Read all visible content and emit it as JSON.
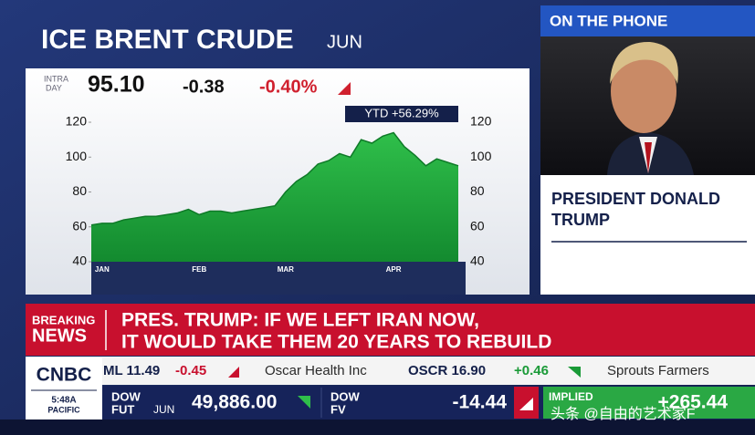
{
  "chart_data": {
    "type": "area",
    "title": "ICE BRENT CRUDE",
    "subtitle": "JUN",
    "categories": [
      null,
      "JAN",
      null,
      null,
      null,
      null,
      null,
      null,
      null,
      null,
      "FEB",
      null,
      null,
      null,
      null,
      null,
      null,
      null,
      "MAR",
      null,
      null,
      null,
      null,
      null,
      null,
      null,
      null,
      null,
      "APR",
      null,
      null,
      null,
      null,
      null,
      null
    ],
    "values": [
      61,
      62,
      62,
      64,
      65,
      66,
      66,
      67,
      68,
      70,
      67,
      69,
      69,
      68,
      69,
      70,
      71,
      72,
      80,
      86,
      90,
      96,
      98,
      102,
      100,
      110,
      108,
      112,
      114,
      106,
      101,
      95,
      99,
      97,
      95
    ],
    "color": "#1fa83c",
    "line_color": "#0f7a28",
    "ylim": [
      40,
      131
    ],
    "yticks": [
      40,
      60,
      80,
      100,
      120
    ],
    "annotation": "YTD +56.29%"
  },
  "quote": {
    "intraday": [
      "INTRA",
      "DAY"
    ],
    "price": "95.10",
    "change": "-0.38",
    "percent": "-0.40%"
  },
  "phone": {
    "label": "ON THE PHONE",
    "name": [
      "PRESIDENT DONALD",
      "TRUMP"
    ]
  },
  "breaking": {
    "label": [
      "BREAKING",
      "NEWS"
    ],
    "headline": [
      "PRES. TRUMP: IF WE LEFT IRAN NOW,",
      "IT WOULD TAKE THEM 20 YEARS TO REBUILD"
    ]
  },
  "ticker": [
    "ML 11.49",
    "-0.45",
    "Oscar Health Inc",
    "OSCR 16.90",
    "+0.46",
    "Sprouts Farmers"
  ],
  "network": {
    "logo": "CNBC",
    "time": [
      "5:48A",
      "PACIFIC"
    ]
  },
  "futures": [
    {
      "label": [
        "DOW",
        "FUT"
      ],
      "contract": "JUN",
      "value": "49,886.00"
    },
    {
      "label": [
        "DOW",
        "FV"
      ],
      "value": "-14.44"
    },
    {
      "label": [
        "IMPLIED"
      ],
      "value": "+265.44"
    }
  ],
  "watermark": "头条 @自由的艺术家F"
}
